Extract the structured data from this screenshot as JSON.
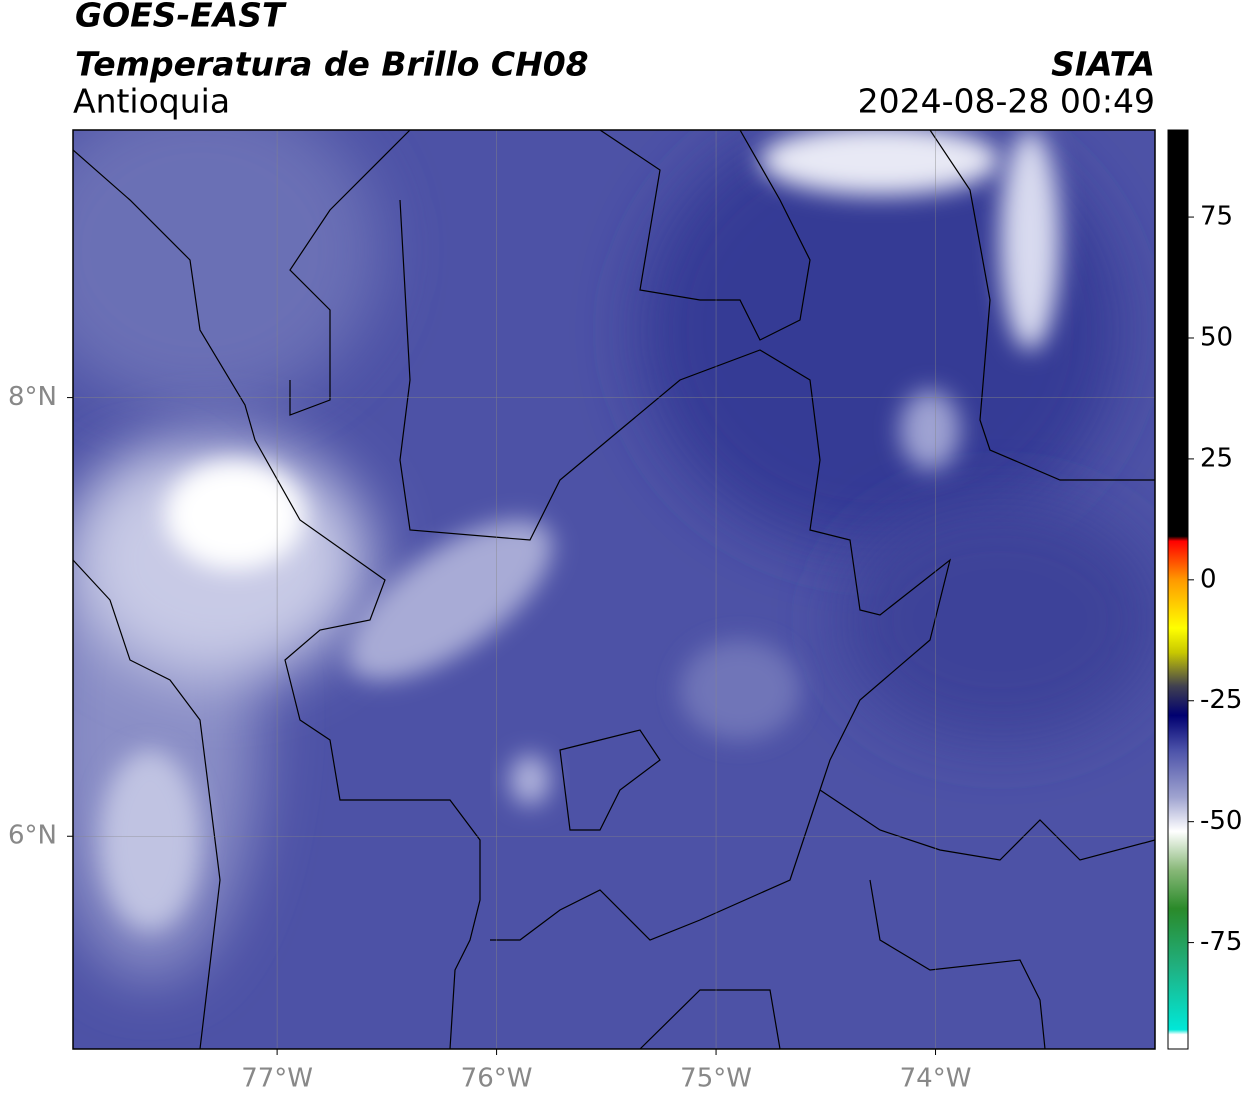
{
  "header": {
    "satellite": "GOES-EAST",
    "product": "Temperatura de Brillo CH08",
    "region": "Antioquia",
    "agency": "SIATA",
    "timestamp": "2024-08-28 00:49"
  },
  "map": {
    "xlim": [
      -77.93,
      -73.0
    ],
    "ylim": [
      5.03,
      9.22
    ],
    "xticks": [
      {
        "value": -77,
        "label": "77°W"
      },
      {
        "value": -76,
        "label": "76°W"
      },
      {
        "value": -75,
        "label": "75°W"
      },
      {
        "value": -74,
        "label": "74°W"
      }
    ],
    "yticks": [
      {
        "value": 8,
        "label": "8°N"
      },
      {
        "value": 6,
        "label": "6°N"
      }
    ],
    "grid": true
  },
  "colorbar": {
    "lim": [
      -97,
      93
    ],
    "ticks": [
      75,
      50,
      25,
      0,
      -25,
      -50,
      -75
    ],
    "stops": [
      [
        -97,
        "#ffffff"
      ],
      [
        -94,
        "#ffffff"
      ],
      [
        -93,
        "#00e8d8"
      ],
      [
        -80,
        "#20b080"
      ],
      [
        -68,
        "#2a8a2a"
      ],
      [
        -60,
        "#88b878"
      ],
      [
        -52,
        "#ffffff"
      ],
      [
        -45,
        "#a0a4d0"
      ],
      [
        -35,
        "#4a50a8"
      ],
      [
        -28,
        "#000070"
      ],
      [
        -22,
        "#404050"
      ],
      [
        -15,
        "#c8c800"
      ],
      [
        -10,
        "#ffff00"
      ],
      [
        0,
        "#ff9900"
      ],
      [
        8,
        "#ff0000"
      ],
      [
        9,
        "#000000"
      ],
      [
        93,
        "#000000"
      ]
    ]
  }
}
